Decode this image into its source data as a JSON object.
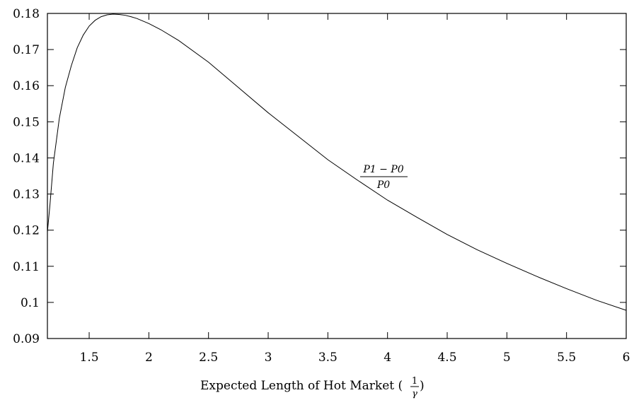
{
  "chart_data": {
    "type": "line",
    "xlabel_text": "Expected Length of Hot Market (",
    "xlabel_frac_num": "1",
    "xlabel_frac_den": "γ",
    "xlabel_close": ")",
    "ylabel": "",
    "xlim": [
      1.15,
      6.0
    ],
    "ylim": [
      0.09,
      0.18
    ],
    "x_ticks": [
      "1.5",
      "2",
      "2.5",
      "3",
      "3.5",
      "4",
      "4.5",
      "5",
      "5.5",
      "6"
    ],
    "y_ticks": [
      "0.09",
      "0.1",
      "0.11",
      "0.12",
      "0.13",
      "0.14",
      "0.15",
      "0.16",
      "0.17",
      "0.18"
    ],
    "grid": false,
    "series": [
      {
        "label_numerator": "P1 − P0",
        "label_denominator": "P0",
        "x": [
          1.15,
          1.17,
          1.2,
          1.25,
          1.3,
          1.35,
          1.4,
          1.45,
          1.5,
          1.55,
          1.6,
          1.65,
          1.7,
          1.75,
          1.8,
          1.85,
          1.9,
          2.0,
          2.1,
          2.25,
          2.5,
          2.75,
          3.0,
          3.25,
          3.5,
          3.75,
          4.0,
          4.25,
          4.5,
          4.75,
          5.0,
          5.25,
          5.5,
          5.75,
          6.0
        ],
        "y": [
          0.1195,
          0.1265,
          0.1385,
          0.151,
          0.1595,
          0.1655,
          0.1705,
          0.174,
          0.1765,
          0.1781,
          0.1791,
          0.1796,
          0.1798,
          0.1797,
          0.1795,
          0.1791,
          0.1786,
          0.1772,
          0.1755,
          0.1725,
          0.1665,
          0.1595,
          0.1525,
          0.146,
          0.1395,
          0.1338,
          0.1283,
          0.1235,
          0.1188,
          0.1146,
          0.1108,
          0.1072,
          0.1038,
          0.1006,
          0.0978
        ]
      }
    ]
  }
}
